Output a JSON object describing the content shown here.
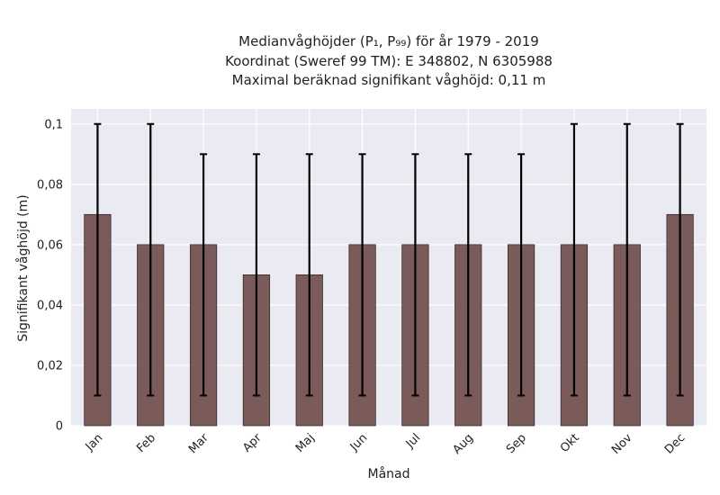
{
  "chart_data": {
    "type": "bar",
    "title_lines": [
      "Medianvåghöjder (P₁, P₉₉) för år 1979 - 2019",
      "Koordinat (Sweref 99 TM): E 348802, N 6305988",
      "Maximal beräknad signifikant våghöjd: 0,11 m"
    ],
    "xlabel": "Månad",
    "ylabel": "Signifikant våghöjd (m)",
    "categories": [
      "Jan",
      "Feb",
      "Mar",
      "Apr",
      "Maj",
      "Jun",
      "Jul",
      "Aug",
      "Sep",
      "Okt",
      "Nov",
      "Dec"
    ],
    "values": [
      0.07,
      0.06,
      0.06,
      0.05,
      0.05,
      0.06,
      0.06,
      0.06,
      0.06,
      0.06,
      0.06,
      0.07
    ],
    "p1": [
      0.01,
      0.01,
      0.01,
      0.01,
      0.01,
      0.01,
      0.01,
      0.01,
      0.01,
      0.01,
      0.01,
      0.01
    ],
    "p99": [
      0.1,
      0.1,
      0.09,
      0.09,
      0.09,
      0.09,
      0.09,
      0.09,
      0.09,
      0.1,
      0.1,
      0.1
    ],
    "yticks": [
      0,
      0.02,
      0.04,
      0.06,
      0.08,
      0.1
    ],
    "ytick_labels": [
      "0",
      "0,02",
      "0,04",
      "0,06",
      "0,08",
      "0,1"
    ],
    "ylim": [
      0,
      0.105
    ],
    "grid": true,
    "legend": "none",
    "colors": {
      "bar": "#7b5a5a",
      "bar_edge": "#3a2a2a",
      "error_bar": "#000000",
      "plot_bg": "#eaeaf2",
      "grid": "#ffffff"
    }
  }
}
